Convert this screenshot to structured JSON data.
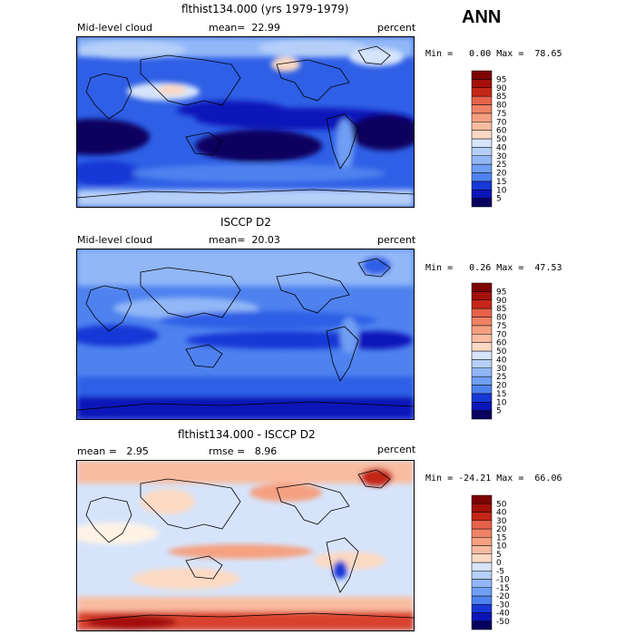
{
  "season": "ANN",
  "colors": {
    "abs_palette": [
      "#08005e",
      "#0b16b8",
      "#1838d6",
      "#2f5fe6",
      "#4f82ef",
      "#6f9ef4",
      "#91b7f7",
      "#b5cff9",
      "#d6e4fb",
      "#fff3e6",
      "#fcd9c2",
      "#f9bca0",
      "#f5a080",
      "#ef8266",
      "#e6624a",
      "#d9432f",
      "#c42618",
      "#a4110a",
      "#7c0403"
    ],
    "diff_palette": [
      "#08005e",
      "#0b16b8",
      "#1838d6",
      "#2f5fe6",
      "#4f82ef",
      "#6f9ef4",
      "#91b7f7",
      "#b5cff9",
      "#d6e4fb",
      "#fff3e6",
      "#fcd9c2",
      "#f9bca0",
      "#f5a080",
      "#ef8266",
      "#e6624a",
      "#d9432f",
      "#c42618",
      "#a4110a",
      "#7c0403"
    ]
  },
  "panels": [
    {
      "title": "flthist134.000 (yrs 1979-1979)",
      "left_label": "Mid-level cloud",
      "mean_label": "mean=  22.99",
      "units": "percent",
      "minmax": "Min =   0.00 Max =  78.65",
      "colorbar_levels": [
        "5",
        "10",
        "15",
        "20",
        "25",
        "30",
        "40",
        "50",
        "60",
        "70",
        "75",
        "80",
        "85",
        "90",
        "95"
      ],
      "kind": "abs"
    },
    {
      "title": "ISCCP D2",
      "left_label": "Mid-level cloud",
      "mean_label": "mean=  20.03",
      "units": "percent",
      "minmax": "Min =   0.26 Max =  47.53",
      "colorbar_levels": [
        "5",
        "10",
        "15",
        "20",
        "25",
        "30",
        "40",
        "50",
        "60",
        "70",
        "75",
        "80",
        "85",
        "90",
        "95"
      ],
      "kind": "abs"
    },
    {
      "title": "flthist134.000 - ISCCP D2",
      "left_label": "mean =   2.95",
      "mean_label": "rmse =   8.96",
      "units": "percent",
      "minmax": "Min = -24.21 Max =  66.06",
      "colorbar_levels": [
        "-50",
        "-40",
        "-30",
        "-20",
        "-15",
        "-10",
        "-5",
        "0",
        "5",
        "10",
        "15",
        "20",
        "30",
        "40",
        "50"
      ],
      "kind": "diff"
    }
  ]
}
